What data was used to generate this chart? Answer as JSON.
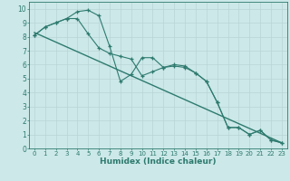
{
  "xlabel": "Humidex (Indice chaleur)",
  "xlim": [
    -0.5,
    23.5
  ],
  "ylim": [
    0,
    10.5
  ],
  "xticks": [
    0,
    1,
    2,
    3,
    4,
    5,
    6,
    7,
    8,
    9,
    10,
    11,
    12,
    13,
    14,
    15,
    16,
    17,
    18,
    19,
    20,
    21,
    22,
    23
  ],
  "yticks": [
    0,
    1,
    2,
    3,
    4,
    5,
    6,
    7,
    8,
    9,
    10
  ],
  "bg_color": "#cce8e8",
  "grid_color": "#b8d4d4",
  "line_color": "#2d7a6e",
  "line1_x": [
    0,
    1,
    2,
    3,
    4,
    5,
    6,
    7,
    8,
    9,
    10,
    11,
    12,
    13,
    14,
    15,
    16,
    17,
    18,
    19,
    20,
    21,
    22,
    23
  ],
  "line1_y": [
    8.1,
    8.7,
    9.0,
    9.3,
    9.3,
    8.2,
    7.2,
    6.8,
    6.6,
    6.4,
    5.2,
    5.5,
    5.8,
    5.9,
    5.8,
    5.4,
    4.8,
    3.3,
    1.5,
    1.5,
    1.0,
    1.3,
    0.6,
    0.4
  ],
  "line2_x": [
    0,
    1,
    2,
    3,
    4,
    5,
    6,
    7,
    8,
    9,
    10,
    11,
    12,
    13,
    14,
    15,
    16,
    17,
    18,
    19,
    20,
    21,
    22,
    23
  ],
  "line2_y": [
    8.1,
    8.7,
    9.0,
    9.3,
    9.8,
    9.9,
    9.5,
    7.3,
    4.8,
    5.3,
    6.5,
    6.5,
    5.8,
    6.0,
    5.9,
    5.4,
    4.8,
    3.3,
    1.5,
    1.5,
    1.0,
    1.3,
    0.6,
    0.4
  ],
  "line3_x": [
    0,
    23
  ],
  "line3_y": [
    8.3,
    0.4
  ]
}
